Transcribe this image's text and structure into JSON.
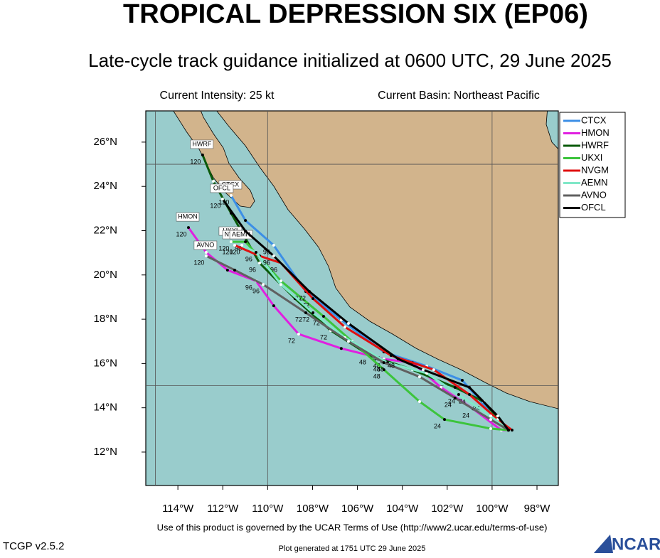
{
  "title": "TROPICAL DEPRESSION SIX (EP06)",
  "subtitle": "Late-cycle track guidance initialized at 0600 UTC, 29 June 2025",
  "intensity": "Current Intensity: 25 kt",
  "basin": "Current Basin: Northeast Pacific",
  "map": {
    "xlim": [
      -115.43,
      -97.05
    ],
    "ylim": [
      10.49,
      27.41
    ],
    "xticks": [
      {
        "value": -114,
        "label": "114°W"
      },
      {
        "value": -112,
        "label": "112°W"
      },
      {
        "value": -110,
        "label": "110°W"
      },
      {
        "value": -108,
        "label": "108°W"
      },
      {
        "value": -106,
        "label": "106°W"
      },
      {
        "value": -104,
        "label": "104°W"
      },
      {
        "value": -102,
        "label": "102°W"
      },
      {
        "value": -100,
        "label": "100°W"
      },
      {
        "value": -98,
        "label": "98°W"
      }
    ],
    "yticks": [
      {
        "value": 12,
        "label": "12°N"
      },
      {
        "value": 14,
        "label": "14°N"
      },
      {
        "value": 16,
        "label": "16°N"
      },
      {
        "value": 18,
        "label": "18°N"
      },
      {
        "value": 20,
        "label": "20°N"
      },
      {
        "value": 22,
        "label": "22°N"
      },
      {
        "value": 24,
        "label": "24°N"
      },
      {
        "value": 26,
        "label": "26°N"
      }
    ],
    "grid_lon": [
      -115,
      -110,
      -100
    ],
    "grid_lat": [
      15,
      25
    ],
    "tracks": [
      {
        "name": "CTCX",
        "color": "#3c8fe6",
        "lon": [
          -99.27,
          -100.06,
          -101.33,
          -102.91,
          -104.82,
          -106.72,
          -108.3,
          -109.73,
          -110.99,
          -111.63
        ],
        "lat": [
          12.99,
          13.79,
          15.24,
          15.88,
          16.52,
          17.97,
          19.25,
          21.34,
          22.46,
          23.59
        ],
        "labels": [
          null,
          null,
          null,
          null,
          "48",
          null,
          "72",
          "96",
          null,
          "120"
        ]
      },
      {
        "name": "HMON",
        "color": "#e020e0",
        "lon": [
          -99.27,
          -99.59,
          -100.85,
          -102.28,
          -103.55,
          -104.82,
          -106.72,
          -108.62,
          -109.73,
          -110.52,
          -111.79,
          -112.74,
          -113.53
        ],
        "lat": [
          12.99,
          12.99,
          13.95,
          14.92,
          16.04,
          16.2,
          16.68,
          17.33,
          18.61,
          19.73,
          20.22,
          21.02,
          22.14
        ],
        "labels": [
          null,
          null,
          "24",
          null,
          null,
          "48",
          null,
          "72",
          null,
          "96",
          null,
          null,
          "120"
        ]
      },
      {
        "name": "HWRF",
        "color": "#0a5a0a",
        "lon": [
          -99.43,
          -100.38,
          -101.65,
          -103.55,
          -105.45,
          -107.19,
          -108.78,
          -110.36,
          -111.63,
          -112.42,
          -112.9
        ],
        "lat": [
          13.15,
          14.28,
          14.92,
          15.72,
          16.36,
          17.49,
          18.93,
          20.54,
          22.79,
          24.23,
          25.42
        ],
        "labels": [
          null,
          "24",
          null,
          null,
          "48",
          "72",
          null,
          "96",
          null,
          null,
          "120"
        ]
      },
      {
        "name": "UKXI",
        "color": "#3cc43c",
        "lon": [
          -99.27,
          -100.06,
          -102.12,
          -103.23,
          -104.82,
          -106.24,
          -107.51,
          -109.41,
          -110.99,
          -111.63
        ],
        "lat": [
          12.99,
          13.06,
          13.47,
          14.28,
          15.72,
          17.0,
          18.13,
          19.73,
          21.5,
          21.5
        ],
        "labels": [
          null,
          null,
          "24",
          null,
          "48",
          null,
          "72",
          null,
          "96",
          "120"
        ]
      },
      {
        "name": "NVGM",
        "color": "#e01010",
        "lon": [
          -99.11,
          -99.75,
          -101.01,
          -102.6,
          -104.5,
          -106.56,
          -107.98,
          -109.41,
          -110.36,
          -111.47
        ],
        "lat": [
          12.99,
          13.47,
          14.6,
          15.72,
          16.36,
          17.65,
          18.93,
          20.54,
          20.86,
          21.34
        ],
        "labels": [
          null,
          null,
          "24",
          null,
          "48",
          null,
          "72",
          "96",
          null,
          "120"
        ]
      },
      {
        "name": "AEMN",
        "color": "#80e8c8",
        "lon": [
          -99.27,
          -100.06,
          -101.49,
          -102.91,
          -104.66,
          -106.56,
          -107.98,
          -109.41,
          -110.52,
          -111.15
        ],
        "lat": [
          12.99,
          13.63,
          14.6,
          15.56,
          16.04,
          17.17,
          18.29,
          19.57,
          21.02,
          21.34
        ],
        "labels": [
          null,
          null,
          "24",
          null,
          "48",
          null,
          "72",
          null,
          "96",
          "120"
        ]
      },
      {
        "name": "AVNO",
        "color": "#606060",
        "lon": [
          -99.27,
          -100.06,
          -101.65,
          -103.23,
          -104.82,
          -106.4,
          -108.3,
          -110.2,
          -111.47,
          -112.74
        ],
        "lat": [
          12.99,
          13.47,
          14.44,
          15.4,
          16.04,
          17.0,
          18.29,
          19.57,
          20.22,
          20.86
        ],
        "labels": [
          null,
          null,
          "24",
          null,
          "48",
          null,
          "72",
          "96",
          null,
          "120"
        ]
      },
      {
        "name": "OFCL",
        "color": "#000000",
        "lon": [
          -99.27,
          -99.75,
          -101.01,
          -103.07,
          -104.18,
          -106.4,
          -108.14,
          -109.73,
          -110.99,
          -112.01
        ],
        "lat": [
          12.99,
          13.63,
          14.92,
          15.72,
          16.2,
          17.81,
          19.25,
          20.86,
          21.98,
          23.43
        ],
        "labels": [
          null,
          null,
          null,
          null,
          "48",
          null,
          "72",
          "96",
          null,
          "120"
        ]
      }
    ]
  },
  "footer": {
    "terms": "Use of this product is governed by the UCAR Terms of Use (http://www2.ucar.edu/terms-of-use)",
    "version": "TCGP v2.5.2",
    "generated": "Plot generated at 1751 UTC   29 June 2025",
    "logo": "NCAR"
  }
}
